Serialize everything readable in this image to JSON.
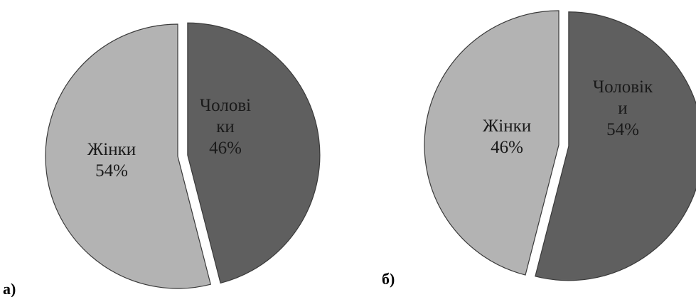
{
  "chart_data": [
    {
      "type": "pie",
      "panel_label": "а)",
      "colors": {
        "Жінки": "#b3b3b3",
        "Чоловіки": "#5f5f5f"
      },
      "slices": [
        {
          "name": "Чоловіки",
          "value": 46,
          "label_lines": [
            "Чолові",
            "ки",
            "46%"
          ],
          "exploded": true
        },
        {
          "name": "Жінки",
          "value": 54,
          "label_lines": [
            "Жінки",
            "54%"
          ],
          "exploded": false
        }
      ]
    },
    {
      "type": "pie",
      "panel_label": "б)",
      "colors": {
        "Жінки": "#b3b3b3",
        "Чоловіки": "#5f5f5f"
      },
      "slices": [
        {
          "name": "Чоловіки",
          "value": 54,
          "label_lines": [
            "Чоловік",
            "и",
            "54%"
          ],
          "exploded": true
        },
        {
          "name": "Жінки",
          "value": 46,
          "label_lines": [
            "Жінки",
            "46%"
          ],
          "exploded": false
        }
      ]
    }
  ]
}
